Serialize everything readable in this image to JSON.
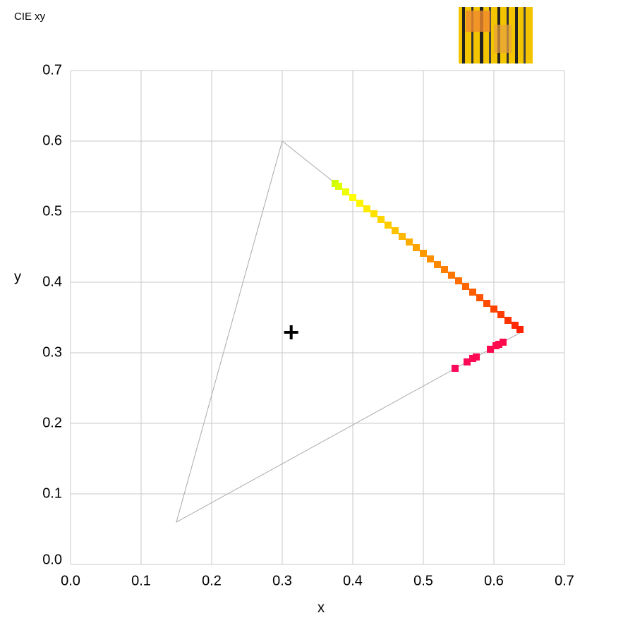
{
  "chart_data": {
    "type": "scatter",
    "title": "CIE xy",
    "xlabel": "x",
    "ylabel": "y",
    "xlim": [
      0,
      0.7
    ],
    "ylim": [
      0,
      0.7
    ],
    "xticks": [
      {
        "value": 0,
        "label": "0.0"
      },
      0.1,
      0.2,
      0.3,
      0.4,
      0.5,
      0.6,
      0.7
    ],
    "yticks": [
      {
        "value": 0,
        "label": "0.0"
      },
      0.1,
      0.2,
      0.3,
      0.4,
      0.5,
      0.6,
      0.7
    ],
    "grid": true,
    "gamut": {
      "x": [
        0.64,
        0.3,
        0.15
      ],
      "y": [
        0.33,
        0.6,
        0.06
      ],
      "color": "#aaaaaa"
    },
    "white_point": {
      "x": 0.3127,
      "y": 0.329,
      "color": "#000000"
    },
    "series": [
      {
        "x": [
          0.375,
          0.38,
          0.39,
          0.4,
          0.41,
          0.42,
          0.43,
          0.44,
          0.45,
          0.46,
          0.47,
          0.48,
          0.49,
          0.5,
          0.51,
          0.52,
          0.53,
          0.54,
          0.55,
          0.56,
          0.57,
          0.58,
          0.59,
          0.6,
          0.61,
          0.62,
          0.63,
          0.637
        ],
        "y": [
          0.54,
          0.536,
          0.528,
          0.52,
          0.512,
          0.504,
          0.497,
          0.489,
          0.481,
          0.473,
          0.465,
          0.457,
          0.449,
          0.441,
          0.433,
          0.425,
          0.418,
          0.41,
          0.402,
          0.394,
          0.386,
          0.378,
          0.37,
          0.362,
          0.354,
          0.346,
          0.339,
          0.333
        ],
        "colors": [
          "#ccff00",
          "#ddff00",
          "#eeff00",
          "#ffff00",
          "#fff500",
          "#ffeb00",
          "#ffe000",
          "#ffd500",
          "#ffcc00",
          "#ffc200",
          "#ffb800",
          "#ffad00",
          "#ffa300",
          "#ff9900",
          "#ff9000",
          "#ff8800",
          "#ff8000",
          "#ff7700",
          "#ff6e00",
          "#ff6600",
          "#ff5e00",
          "#ff5500",
          "#ff4c00",
          "#ff4400",
          "#ff3b00",
          "#ff3300",
          "#ff2a00",
          "#ff2200"
        ]
      },
      {
        "x": [
          0.545,
          0.562,
          0.57,
          0.575,
          0.595,
          0.603,
          0.607,
          0.613
        ],
        "y": [
          0.278,
          0.287,
          0.292,
          0.294,
          0.305,
          0.31,
          0.312,
          0.315
        ],
        "colors": [
          "#ff0a5a",
          "#ff0a58",
          "#ff0a55",
          "#ff0a55",
          "#ff0a50",
          "#ff0a4d",
          "#ff0a4d",
          "#ff0a4a"
        ]
      }
    ]
  }
}
